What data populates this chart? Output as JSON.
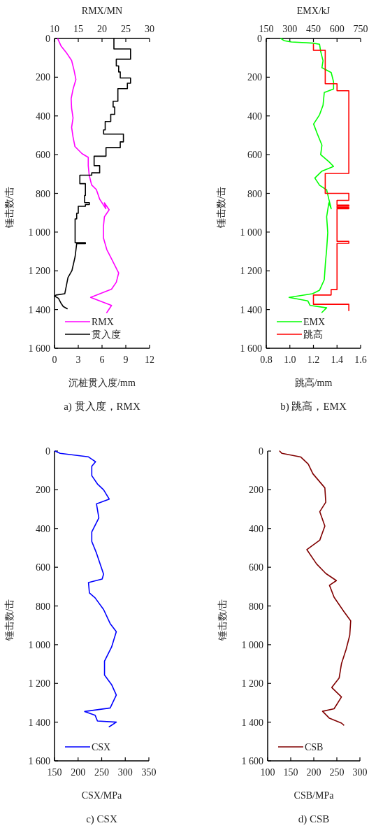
{
  "chart_data": [
    {
      "type": "line",
      "title": "a) 贯入度，RMX",
      "xlabel": "沉桩贯入度/mm",
      "x2label": "RMX/MN",
      "ylabel": "锤击数/击",
      "xlim": [
        0,
        12
      ],
      "xticks": [
        0,
        3,
        6,
        9,
        12
      ],
      "x2lim": [
        10,
        30
      ],
      "x2ticks": [
        10,
        15,
        20,
        25,
        30
      ],
      "ylim": [
        1600,
        0
      ],
      "yticks": [
        0,
        200,
        400,
        600,
        800,
        {
          "value": 1000,
          "label": "1 000"
        },
        {
          "value": 1200,
          "label": "1 200"
        },
        {
          "value": 1400,
          "label": "1 400"
        },
        {
          "value": 1600,
          "label": "1 600"
        }
      ],
      "legend": "bottom left",
      "series": [
        {
          "name": "RMX",
          "color": "#ff00ff",
          "axis": "x2",
          "x": [
            10.7,
            11.4,
            12.6,
            13.6,
            14.1,
            14.5,
            13.9,
            13.5,
            13.6,
            13.9,
            13.6,
            13.9,
            14.3,
            15.8,
            17.1,
            17.1,
            17.3,
            17.8,
            18.8,
            19.5,
            20.8,
            20.5,
            21.5,
            20.5,
            20.3,
            20.3,
            21.0,
            22.0,
            23.5,
            23.0,
            22.0,
            17.6,
            19.5,
            22.0,
            21.0
          ],
          "values": [
            2,
            40,
            77,
            114,
            163,
            212,
            262,
            311,
            361,
            410,
            459,
            509,
            558,
            595,
            614,
            657,
            706,
            756,
            780,
            830,
            879,
            849,
            885,
            921,
            970,
            1030,
            1090,
            1138,
            1211,
            1259,
            1295,
            1337,
            1355,
            1379,
            1416
          ]
        },
        {
          "name": "贯入度",
          "color": "#000000",
          "x": [
            7.5,
            7.5,
            9.6,
            9.6,
            7.8,
            7.8,
            8.1,
            8.1,
            8.3,
            8.3,
            9.6,
            9.6,
            9.2,
            9.2,
            8.0,
            8.0,
            7.4,
            7.4,
            7.6,
            7.6,
            7.1,
            7.1,
            6.4,
            6.4,
            6.2,
            6.2,
            8.7,
            8.7,
            8.3,
            8.3,
            6.5,
            6.5,
            5.0,
            5.0,
            5.7,
            5.7,
            4.7,
            4.7,
            3.2,
            3.2,
            3.9,
            3.9,
            3.8,
            3.8,
            4.4,
            4.4,
            3.9,
            3.9,
            3.0,
            3.0,
            2.8,
            2.8,
            2.6,
            2.6,
            3.9,
            3.9,
            2.8,
            2.6,
            2.2,
            1.7,
            1.3,
            0.2,
            0,
            0.5,
            0.8,
            1.1,
            1.6
          ],
          "values": [
            0,
            54,
            54,
            107,
            107,
            142,
            142,
            173,
            173,
            204,
            204,
            231,
            231,
            259,
            259,
            324,
            324,
            354,
            354,
            392,
            392,
            429,
            429,
            472,
            472,
            494,
            494,
            534,
            534,
            564,
            564,
            608,
            608,
            657,
            657,
            694,
            694,
            706,
            706,
            750,
            750,
            811,
            811,
            848,
            848,
            858,
            858,
            867,
            867,
            903,
            903,
            932,
            932,
            1055,
            1055,
            1060,
            1060,
            1127,
            1199,
            1235,
            1318,
            1325,
            1330,
            1342,
            1366,
            1384,
            1396
          ]
        }
      ]
    },
    {
      "type": "line",
      "title": "b) 跳高，EMX",
      "xlabel": "跳高/mm",
      "x2label": "EMX/kJ",
      "ylabel": "锤击数/击",
      "xlim": [
        0.8,
        1.6
      ],
      "xticks": [
        0.8,
        {
          "value": 1,
          "label": "1.0"
        },
        1.2,
        1.4,
        1.6
      ],
      "x2lim": [
        150,
        750
      ],
      "x2ticks": [
        150,
        300,
        450,
        600,
        750
      ],
      "ylim": [
        1600,
        0
      ],
      "yticks": [
        0,
        200,
        400,
        600,
        800,
        {
          "value": 1000,
          "label": "1 000"
        },
        {
          "value": 1200,
          "label": "1 200"
        },
        {
          "value": 1400,
          "label": "1 400"
        },
        {
          "value": 1600,
          "label": "1 600"
        }
      ],
      "legend": "bottom left",
      "series": [
        {
          "name": "EMX",
          "color": "#00ff00",
          "axis": "x2",
          "x": [
            243,
            265,
            310,
            444,
            489,
            496,
            511,
            504,
            563,
            578,
            578,
            519,
            511,
            489,
            451,
            474,
            504,
            496,
            548,
            578,
            504,
            459,
            489,
            534,
            548,
            563,
            548,
            534,
            541,
            534,
            526,
            519,
            489,
            444,
            295,
            414,
            429,
            534,
            504
          ],
          "values": [
            0,
            12,
            18,
            24,
            30,
            67,
            115,
            151,
            176,
            224,
            261,
            279,
            345,
            394,
            442,
            491,
            551,
            600,
            636,
            661,
            685,
            721,
            758,
            782,
            830,
            879,
            849,
            921,
            1003,
            1090,
            1162,
            1246,
            1300,
            1318,
            1337,
            1355,
            1379,
            1391,
            1415
          ]
        },
        {
          "name": "跳高",
          "color": "#ff0000",
          "x": [
            1.2,
            1.2,
            1.3,
            1.3,
            1.4,
            1.4,
            1.5,
            1.5,
            1.3,
            1.3,
            1.5,
            1.5,
            1.4,
            1.4,
            1.5,
            1.5,
            1.4,
            1.4,
            1.5,
            1.5,
            1.4,
            1.4,
            1.5,
            1.5,
            1.4,
            1.4,
            1.35,
            1.35,
            1.2,
            1.2,
            1.5,
            1.5
          ],
          "values": [
            30,
            61,
            61,
            234,
            234,
            270,
            270,
            697,
            697,
            800,
            800,
            836,
            836,
            861,
            861,
            867,
            867,
            873,
            873,
            879,
            879,
            1048,
            1048,
            1058,
            1058,
            1297,
            1297,
            1325,
            1325,
            1373,
            1373,
            1406
          ]
        }
      ]
    },
    {
      "type": "line",
      "title": "c) CSX",
      "xlabel": "CSX/MPa",
      "ylabel": "锤击数/击",
      "xlim": [
        150,
        350
      ],
      "xticks": [
        150,
        200,
        250,
        300,
        350
      ],
      "ylim": [
        1600,
        0
      ],
      "yticks": [
        0,
        200,
        400,
        600,
        800,
        {
          "value": 1000,
          "label": "1 000"
        },
        {
          "value": 1200,
          "label": "1 200"
        },
        {
          "value": 1400,
          "label": "1 400"
        },
        {
          "value": 1600,
          "label": "1 600"
        }
      ],
      "legend": "bottom left",
      "series": [
        {
          "name": "CSX",
          "color": "#0000ff",
          "x": [
            151,
            162,
            222,
            229,
            237,
            229,
            229,
            241,
            254,
            266,
            239,
            244,
            229,
            229,
            239,
            254,
            251,
            222,
            224,
            236,
            254,
            268,
            281,
            271,
            256,
            256,
            271,
            281,
            268,
            214,
            236,
            241,
            281,
            266
          ],
          "values": [
            0,
            12,
            30,
            42,
            55,
            79,
            127,
            170,
            200,
            248,
            273,
            345,
            418,
            467,
            527,
            636,
            661,
            679,
            733,
            758,
            818,
            891,
            933,
            1012,
            1085,
            1157,
            1206,
            1260,
            1327,
            1345,
            1364,
            1394,
            1400,
            1424
          ]
        }
      ]
    },
    {
      "type": "line",
      "title": "d) CSB",
      "xlabel": "CSB/MPa",
      "ylabel": "锤击数/击",
      "xlim": [
        100,
        300
      ],
      "xticks": [
        100,
        150,
        200,
        250,
        300
      ],
      "ylim": [
        1600,
        0
      ],
      "yticks": [
        0,
        200,
        400,
        600,
        800,
        {
          "value": 1000,
          "label": "1 000"
        },
        {
          "value": 1200,
          "label": "1 200"
        },
        {
          "value": 1400,
          "label": "1 400"
        },
        {
          "value": 1600,
          "label": "1 600"
        }
      ],
      "legend": "bottom left",
      "series": [
        {
          "name": "CSB",
          "color": "#800000",
          "x": [
            126,
            131,
            172,
            188,
            198,
            224,
            226,
            213,
            224,
            213,
            185,
            206,
            226,
            249,
            234,
            244,
            265,
            280,
            278,
            270,
            260,
            255,
            239,
            260,
            244,
            219,
            234,
            260,
            265
          ],
          "values": [
            0,
            12,
            31,
            67,
            117,
            190,
            264,
            313,
            387,
            460,
            509,
            583,
            632,
            669,
            693,
            755,
            828,
            877,
            951,
            1025,
            1098,
            1172,
            1221,
            1270,
            1331,
            1344,
            1380,
            1405,
            1415
          ]
        }
      ]
    }
  ]
}
